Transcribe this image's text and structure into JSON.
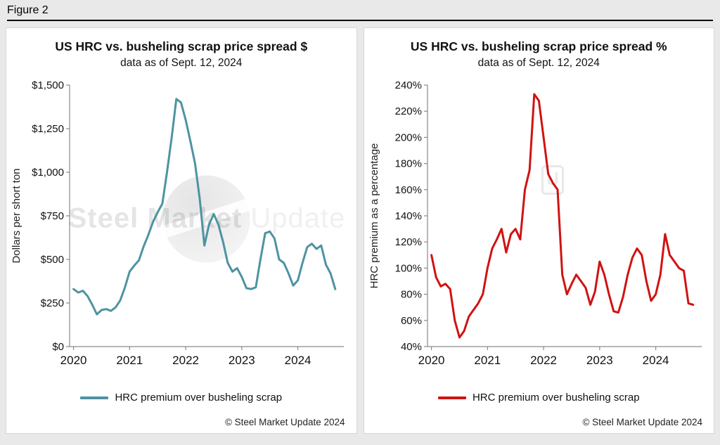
{
  "figure_label": "Figure 2",
  "colors": {
    "page_bg": "#e9e9e9",
    "panel_bg": "#ffffff",
    "axis": "#8a8a8a",
    "teal_line": "#4e93a1",
    "red_line": "#d01212"
  },
  "watermark": {
    "text_bold": "Steel Market",
    "text_light": "Update"
  },
  "chart_data": [
    {
      "type": "line",
      "title": "US HRC vs. busheling scrap price spread $",
      "subtitle": "data as of Sept. 12, 2024",
      "ylabel": "Dollars per short ton",
      "legend": "HRC premium over busheling scrap",
      "copyright": "© Steel Market Update 2024",
      "line_color": "#4e93a1",
      "grid": false,
      "legend_position": "bottom",
      "x_frequency": "monthly",
      "x_start": 2020.0,
      "x_step": 0.083333,
      "x_end": 2024.667,
      "xlim": [
        2019.93,
        2024.82
      ],
      "ylim": [
        0,
        1500
      ],
      "yticks": [
        0,
        250,
        500,
        750,
        1000,
        1250,
        1500
      ],
      "ytick_labels": [
        "$0",
        "$250",
        "$500",
        "$750",
        "$1,000",
        "$1,250",
        "$1,500"
      ],
      "xticks": [
        2020,
        2021,
        2022,
        2023,
        2024
      ],
      "xtick_labels": [
        "2020",
        "2021",
        "2022",
        "2023",
        "2024"
      ],
      "values": [
        330,
        310,
        320,
        290,
        240,
        185,
        210,
        215,
        205,
        225,
        265,
        340,
        430,
        465,
        495,
        575,
        640,
        715,
        770,
        820,
        1000,
        1200,
        1420,
        1400,
        1300,
        1180,
        1050,
        850,
        580,
        700,
        760,
        700,
        600,
        480,
        430,
        450,
        400,
        335,
        330,
        340,
        500,
        650,
        660,
        620,
        500,
        480,
        420,
        350,
        380,
        480,
        570,
        590,
        560,
        580,
        470,
        420,
        330
      ]
    },
    {
      "type": "line",
      "title": "US HRC vs. busheling scrap price spread %",
      "subtitle": "data as of Sept. 12, 2024",
      "ylabel": "HRC premium as a percentage",
      "legend": "HRC premium over busheling scrap",
      "copyright": "© Steel Market Update 2024",
      "line_color": "#d01212",
      "grid": false,
      "legend_position": "bottom",
      "x_frequency": "monthly",
      "x_start": 2020.0,
      "x_step": 0.083333,
      "x_end": 2024.667,
      "xlim": [
        2019.93,
        2024.82
      ],
      "ylim": [
        40,
        240
      ],
      "yticks": [
        40,
        60,
        80,
        100,
        120,
        140,
        160,
        180,
        200,
        220,
        240
      ],
      "ytick_labels": [
        "40%",
        "60%",
        "80%",
        "100%",
        "120%",
        "140%",
        "160%",
        "180%",
        "200%",
        "220%",
        "240%"
      ],
      "xticks": [
        2020,
        2021,
        2022,
        2023,
        2024
      ],
      "xtick_labels": [
        "2020",
        "2021",
        "2022",
        "2023",
        "2024"
      ],
      "values": [
        110,
        93,
        86,
        88,
        84,
        60,
        47,
        52,
        63,
        68,
        73,
        80,
        100,
        115,
        122,
        130,
        112,
        126,
        130,
        122,
        160,
        175,
        233,
        228,
        200,
        172,
        165,
        160,
        95,
        80,
        88,
        95,
        90,
        85,
        72,
        82,
        105,
        95,
        80,
        67,
        66,
        78,
        95,
        108,
        115,
        110,
        90,
        75,
        80,
        95,
        126,
        110,
        105,
        100,
        98,
        73,
        72
      ]
    }
  ]
}
